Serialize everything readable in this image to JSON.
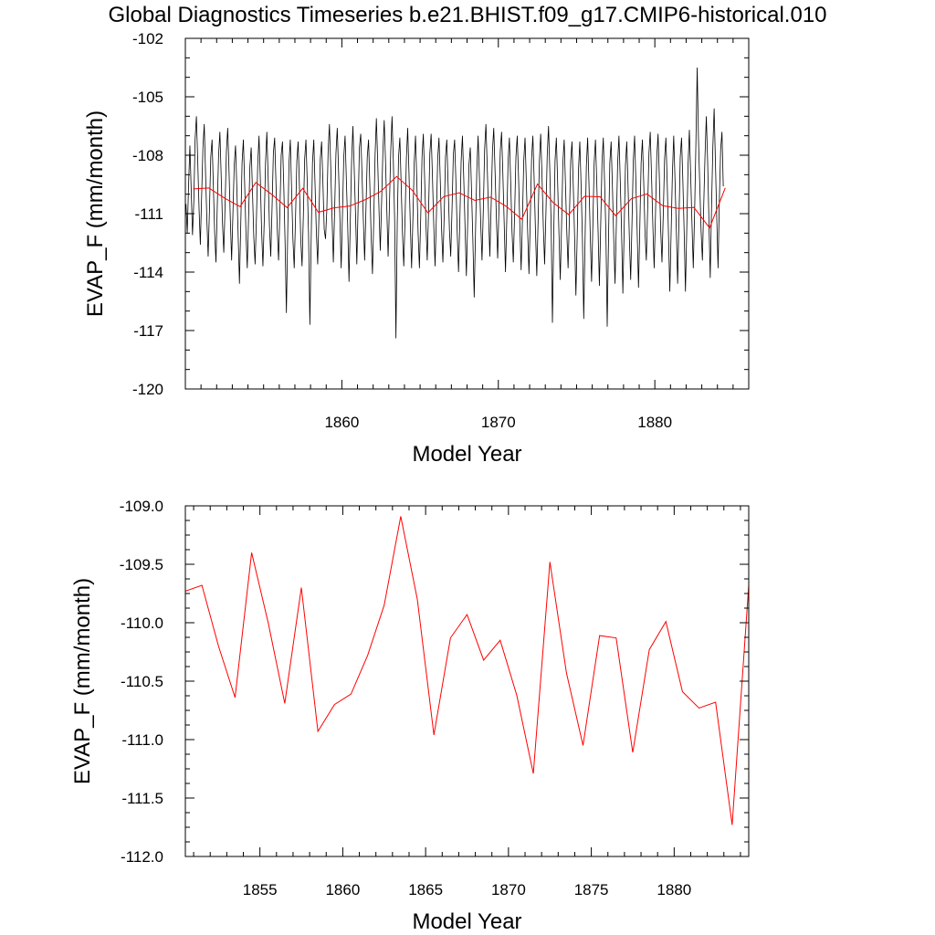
{
  "title": "Global Diagnostics Timeseries b.e21.BHIST.f09_g17.CMIP6-historical.010",
  "colors": {
    "monthly": "#000000",
    "annual": "#ff0000"
  },
  "chart_data": [
    {
      "type": "line",
      "xlabel": "Model Year",
      "ylabel": "EVAP_F (mm/month)",
      "xlim": [
        1850,
        1886
      ],
      "ylim": [
        -120,
        -102
      ],
      "x_ticks": [
        1860,
        1870,
        1880
      ],
      "x_tick_labels": [
        "1860",
        "1870",
        "1880"
      ],
      "y_ticks": [
        -120,
        -117,
        -114,
        -111,
        -108,
        -105,
        -102
      ],
      "y_tick_labels": [
        "-120",
        "-117",
        "-114",
        "-111",
        "-108",
        "-105",
        "-102"
      ],
      "series": [
        {
          "kind": "monthly",
          "color": "#000000",
          "x_start": 1850.04,
          "x_step": 0.0833333,
          "values": [
            -110.5,
            -112.0,
            -109.5,
            -107.5,
            -109.8,
            -112.1,
            -110.4,
            -107.2,
            -106.0,
            -108.3,
            -110.7,
            -112.6,
            -110.1,
            -107.6,
            -106.4,
            -108.9,
            -111.3,
            -113.2,
            -110.8,
            -108.1,
            -107.2,
            -109.6,
            -112.0,
            -113.5,
            -110.6,
            -108.0,
            -106.8,
            -109.1,
            -111.5,
            -113.0,
            -110.5,
            -107.8,
            -106.6,
            -108.8,
            -111.3,
            -113.4,
            -111.0,
            -108.5,
            -107.5,
            -109.7,
            -112.1,
            -114.6,
            -111.6,
            -108.4,
            -107.2,
            -109.5,
            -112.0,
            -113.8,
            -111.2,
            -108.6,
            -107.6,
            -109.9,
            -112.2,
            -113.6,
            -111.3,
            -108.5,
            -107.0,
            -109.2,
            -111.9,
            -113.7,
            -111.4,
            -108.4,
            -106.8,
            -109.1,
            -111.6,
            -113.2,
            -110.7,
            -107.9,
            -107.1,
            -109.4,
            -111.8,
            -113.4,
            -110.9,
            -108.0,
            -107.3,
            -109.6,
            -112.5,
            -116.1,
            -112.0,
            -108.4,
            -107.2,
            -109.8,
            -112.3,
            -113.8,
            -111.2,
            -108.3,
            -107.3,
            -109.6,
            -112.3,
            -113.7,
            -111.1,
            -108.2,
            -107.2,
            -109.4,
            -112.1,
            -116.7,
            -112.3,
            -108.4,
            -107.2,
            -109.6,
            -112.0,
            -113.6,
            -111.0,
            -108.2,
            -107.3,
            -109.4,
            -111.8,
            -112.3,
            -110.8,
            -107.8,
            -106.4,
            -108.6,
            -111.2,
            -113.5,
            -110.8,
            -107.9,
            -106.6,
            -108.8,
            -111.2,
            -113.8,
            -111.0,
            -108.1,
            -107.0,
            -109.3,
            -111.6,
            -114.5,
            -111.4,
            -108.3,
            -106.5,
            -108.7,
            -111.0,
            -113.6,
            -110.6,
            -107.6,
            -106.9,
            -109.0,
            -111.3,
            -113.4,
            -110.8,
            -108.1,
            -107.2,
            -109.6,
            -112.2,
            -114.1,
            -111.3,
            -108.0,
            -106.1,
            -108.3,
            -110.8,
            -112.9,
            -110.4,
            -107.8,
            -106.2,
            -108.3,
            -110.8,
            -113.2,
            -110.6,
            -107.8,
            -106.0,
            -108.3,
            -111.3,
            -117.4,
            -111.5,
            -108.1,
            -107.1,
            -109.5,
            -112.0,
            -113.7,
            -111.2,
            -108.2,
            -106.6,
            -108.9,
            -111.5,
            -113.8,
            -111.3,
            -108.4,
            -107.0,
            -109.3,
            -112.0,
            -113.8,
            -111.2,
            -108.1,
            -106.9,
            -109.2,
            -111.5,
            -113.4,
            -110.9,
            -107.9,
            -106.9,
            -109.1,
            -111.6,
            -113.7,
            -111.2,
            -108.2,
            -107.1,
            -109.3,
            -111.8,
            -113.5,
            -111.1,
            -108.1,
            -107.2,
            -109.5,
            -111.8,
            -113.2,
            -110.8,
            -108.0,
            -107.2,
            -109.4,
            -112.0,
            -114.0,
            -111.3,
            -108.3,
            -107.0,
            -109.2,
            -111.7,
            -114.2,
            -111.5,
            -108.5,
            -107.6,
            -109.9,
            -112.4,
            -115.3,
            -112.0,
            -108.8,
            -107.0,
            -109.1,
            -111.5,
            -113.4,
            -110.8,
            -107.7,
            -106.4,
            -108.6,
            -111.0,
            -113.2,
            -110.6,
            -107.8,
            -106.6,
            -108.8,
            -111.2,
            -113.3,
            -110.7,
            -107.8,
            -106.8,
            -109.0,
            -111.5,
            -114.0,
            -111.3,
            -108.3,
            -107.1,
            -109.4,
            -111.9,
            -113.5,
            -111.0,
            -108.1,
            -107.0,
            -109.1,
            -111.6,
            -113.9,
            -111.3,
            -108.3,
            -107.1,
            -109.4,
            -111.9,
            -114.1,
            -111.3,
            -108.2,
            -107.0,
            -109.3,
            -111.9,
            -114.2,
            -111.4,
            -108.3,
            -106.9,
            -109.1,
            -111.6,
            -113.6,
            -111.0,
            -108.0,
            -106.5,
            -108.8,
            -111.5,
            -116.6,
            -112.1,
            -108.3,
            -107.1,
            -109.4,
            -112.0,
            -114.4,
            -111.6,
            -108.4,
            -107.2,
            -109.5,
            -111.9,
            -113.8,
            -111.2,
            -108.3,
            -107.3,
            -109.6,
            -112.2,
            -115.2,
            -112.1,
            -108.7,
            -107.3,
            -109.6,
            -112.3,
            -116.4,
            -112.4,
            -108.6,
            -107.1,
            -109.4,
            -112.1,
            -114.5,
            -111.6,
            -108.4,
            -107.2,
            -109.4,
            -111.9,
            -114.7,
            -111.6,
            -108.4,
            -107.1,
            -109.4,
            -112.0,
            -116.8,
            -112.3,
            -108.4,
            -107.3,
            -109.6,
            -112.3,
            -114.6,
            -111.6,
            -108.4,
            -107.0,
            -109.3,
            -111.9,
            -115.1,
            -111.8,
            -108.5,
            -107.3,
            -109.6,
            -112.3,
            -114.4,
            -111.5,
            -108.3,
            -107.0,
            -109.4,
            -112.0,
            -114.8,
            -111.7,
            -108.4,
            -107.2,
            -109.4,
            -112.0,
            -113.4,
            -110.8,
            -107.9,
            -106.8,
            -109.1,
            -111.6,
            -113.8,
            -111.1,
            -108.1,
            -106.9,
            -109.2,
            -111.8,
            -113.5,
            -111.0,
            -108.2,
            -107.1,
            -109.4,
            -112.1,
            -115.0,
            -112.0,
            -108.9,
            -107.0,
            -109.3,
            -111.8,
            -114.6,
            -111.4,
            -108.1,
            -107.1,
            -109.3,
            -111.9,
            -115.0,
            -111.8,
            -108.5,
            -106.7,
            -109.0,
            -111.5,
            -113.8,
            -111.0,
            -107.4,
            -103.5,
            -107.2,
            -109.6,
            -111.9,
            -113.4,
            -110.6,
            -108.0,
            -106.0,
            -108.3,
            -111.4,
            -114.3,
            -110.7,
            -107.6,
            -105.6,
            -108.4,
            -111.2,
            -113.8,
            -110.3,
            -107.7,
            -106.8,
            -109.6
          ]
        },
        {
          "name": "",
          "kind": "annual",
          "color": "#ff0000",
          "x": [
            1850.5,
            1851.5,
            1852.5,
            1853.5,
            1854.5,
            1855.5,
            1856.5,
            1857.5,
            1858.5,
            1859.5,
            1860.5,
            1861.5,
            1862.5,
            1863.5,
            1864.5,
            1865.5,
            1866.5,
            1867.5,
            1868.5,
            1869.5,
            1870.5,
            1871.5,
            1872.5,
            1873.5,
            1874.5,
            1875.5,
            1876.5,
            1877.5,
            1878.5,
            1879.5,
            1880.5,
            1881.5,
            1882.5,
            1883.5,
            1884.5
          ],
          "values": [
            -109.73,
            -109.68,
            -110.2,
            -110.64,
            -109.4,
            -110.0,
            -110.69,
            -109.7,
            -110.93,
            -110.7,
            -110.61,
            -110.28,
            -109.85,
            -109.09,
            -109.8,
            -110.96,
            -110.13,
            -109.93,
            -110.32,
            -110.15,
            -110.62,
            -111.29,
            -109.48,
            -110.43,
            -111.05,
            -110.11,
            -110.13,
            -111.11,
            -110.23,
            -109.99,
            -110.59,
            -110.73,
            -110.68,
            -111.73,
            -109.68
          ]
        }
      ]
    },
    {
      "type": "line",
      "xlabel": "Model Year",
      "ylabel": "EVAP_F (mm/month)",
      "xlim": [
        1850.5,
        1884.5
      ],
      "ylim": [
        -112.0,
        -109.0
      ],
      "x_ticks": [
        1855,
        1860,
        1865,
        1870,
        1875,
        1880
      ],
      "x_tick_labels": [
        "1855",
        "1860",
        "1865",
        "1870",
        "1875",
        "1880"
      ],
      "y_ticks": [
        -112.0,
        -111.5,
        -111.0,
        -110.5,
        -110.0,
        -109.5,
        -109.0
      ],
      "y_tick_labels": [
        "-112.0",
        "-111.5",
        "-111.0",
        "-110.5",
        "-110.0",
        "-109.5",
        "-109.0"
      ],
      "series": [
        {
          "name": "",
          "kind": "annual",
          "color": "#ff0000",
          "x": [
            1850.5,
            1851.5,
            1852.5,
            1853.5,
            1854.5,
            1855.5,
            1856.5,
            1857.5,
            1858.5,
            1859.5,
            1860.5,
            1861.5,
            1862.5,
            1863.5,
            1864.5,
            1865.5,
            1866.5,
            1867.5,
            1868.5,
            1869.5,
            1870.5,
            1871.5,
            1872.5,
            1873.5,
            1874.5,
            1875.5,
            1876.5,
            1877.5,
            1878.5,
            1879.5,
            1880.5,
            1881.5,
            1882.5,
            1883.5,
            1884.5
          ],
          "values": [
            -109.73,
            -109.68,
            -110.2,
            -110.64,
            -109.4,
            -110.0,
            -110.69,
            -109.7,
            -110.93,
            -110.7,
            -110.61,
            -110.28,
            -109.85,
            -109.09,
            -109.8,
            -110.96,
            -110.13,
            -109.93,
            -110.32,
            -110.15,
            -110.62,
            -111.29,
            -109.48,
            -110.43,
            -111.05,
            -110.11,
            -110.13,
            -111.11,
            -110.23,
            -109.99,
            -110.59,
            -110.73,
            -110.68,
            -111.73,
            -109.68
          ]
        }
      ]
    }
  ]
}
